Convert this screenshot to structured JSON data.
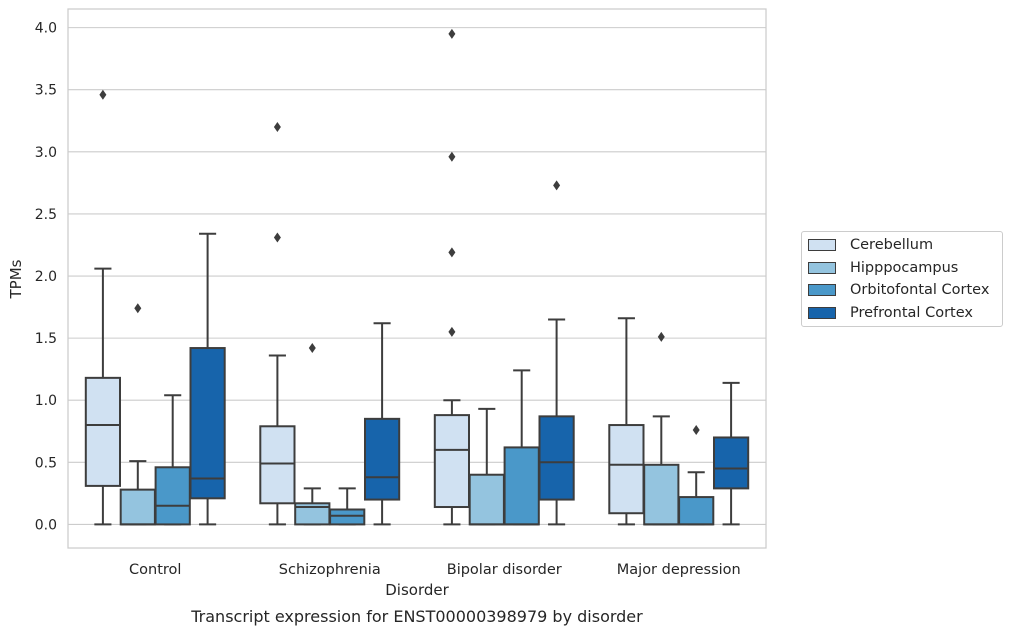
{
  "chart_data": {
    "type": "boxplot",
    "xlabel": "Disorder",
    "ylabel": "TPMs",
    "caption": "Transcript expression for ENST00000398979 by disorder",
    "ylim": [
      -0.19,
      4.15
    ],
    "yticks": [
      "0.0",
      "0.5",
      "1.0",
      "1.5",
      "2.0",
      "2.5",
      "3.0",
      "3.5",
      "4.0"
    ],
    "grid": "horizontal",
    "legend_placement": "right",
    "categories": [
      "Control",
      "Schizophrenia",
      "Bipolar disorder",
      "Major depression"
    ],
    "series": [
      {
        "name": "Cerebellum",
        "color": "#d0e1f2",
        "boxes": [
          {
            "whisker_low": 0.0,
            "q1": 0.31,
            "median": 0.8,
            "q3": 1.18,
            "whisker_high": 2.06,
            "outliers": [
              3.46
            ]
          },
          {
            "whisker_low": 0.0,
            "q1": 0.17,
            "median": 0.49,
            "q3": 0.79,
            "whisker_high": 1.36,
            "outliers": [
              2.31,
              3.2
            ]
          },
          {
            "whisker_low": 0.0,
            "q1": 0.14,
            "median": 0.6,
            "q3": 0.88,
            "whisker_high": 1.0,
            "outliers": [
              1.55,
              2.19,
              2.96,
              3.95
            ]
          },
          {
            "whisker_low": 0.0,
            "q1": 0.09,
            "median": 0.48,
            "q3": 0.8,
            "whisker_high": 1.66,
            "outliers": []
          }
        ]
      },
      {
        "name": "Hipppocampus",
        "color": "#94c4df",
        "boxes": [
          {
            "whisker_low": 0.0,
            "q1": 0.0,
            "median": 0.0,
            "q3": 0.28,
            "whisker_high": 0.51,
            "outliers": [
              1.74
            ]
          },
          {
            "whisker_low": 0.0,
            "q1": 0.0,
            "median": 0.14,
            "q3": 0.17,
            "whisker_high": 0.29,
            "outliers": [
              1.42
            ]
          },
          {
            "whisker_low": 0.0,
            "q1": 0.0,
            "median": 0.0,
            "q3": 0.4,
            "whisker_high": 0.93,
            "outliers": []
          },
          {
            "whisker_low": 0.0,
            "q1": 0.0,
            "median": 0.0,
            "q3": 0.48,
            "whisker_high": 0.87,
            "outliers": [
              1.51
            ]
          }
        ]
      },
      {
        "name": "Orbitofontal Cortex",
        "color": "#4a98c9",
        "boxes": [
          {
            "whisker_low": 0.0,
            "q1": 0.0,
            "median": 0.15,
            "q3": 0.46,
            "whisker_high": 1.04,
            "outliers": []
          },
          {
            "whisker_low": 0.0,
            "q1": 0.0,
            "median": 0.07,
            "q3": 0.12,
            "whisker_high": 0.29,
            "outliers": []
          },
          {
            "whisker_low": 0.0,
            "q1": 0.0,
            "median": 0.0,
            "q3": 0.62,
            "whisker_high": 1.24,
            "outliers": []
          },
          {
            "whisker_low": 0.0,
            "q1": 0.0,
            "median": 0.0,
            "q3": 0.22,
            "whisker_high": 0.42,
            "outliers": [
              0.76
            ]
          }
        ]
      },
      {
        "name": "Prefrontal Cortex",
        "color": "#1764ab",
        "boxes": [
          {
            "whisker_low": 0.0,
            "q1": 0.21,
            "median": 0.37,
            "q3": 1.42,
            "whisker_high": 2.34,
            "outliers": []
          },
          {
            "whisker_low": 0.0,
            "q1": 0.2,
            "median": 0.38,
            "q3": 0.85,
            "whisker_high": 1.62,
            "outliers": []
          },
          {
            "whisker_low": 0.0,
            "q1": 0.2,
            "median": 0.5,
            "q3": 0.87,
            "whisker_high": 1.65,
            "outliers": [
              2.73
            ]
          },
          {
            "whisker_low": 0.0,
            "q1": 0.29,
            "median": 0.45,
            "q3": 0.7,
            "whisker_high": 1.14,
            "outliers": []
          }
        ]
      }
    ]
  }
}
